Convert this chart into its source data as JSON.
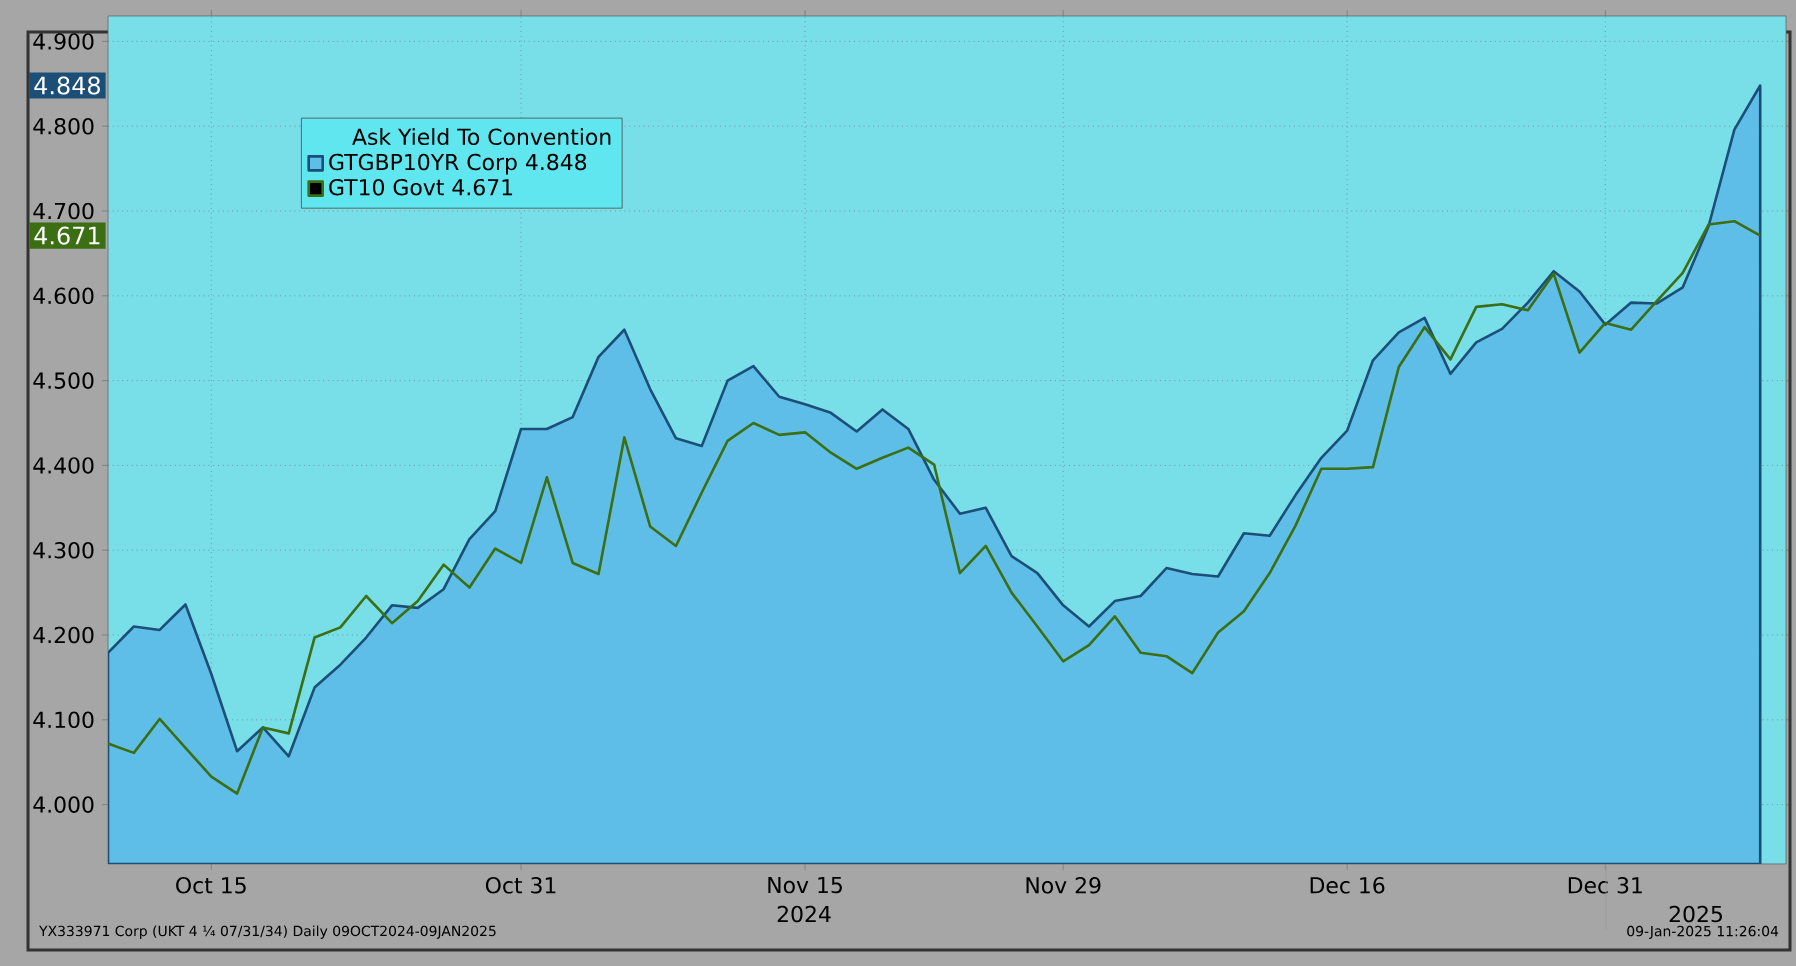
{
  "chart_data": {
    "type": "line",
    "categories": [
      null,
      null,
      null,
      null,
      "Oct 15",
      null,
      null,
      null,
      null,
      null,
      null,
      null,
      null,
      null,
      null,
      null,
      "Oct 31",
      null,
      null,
      null,
      null,
      null,
      null,
      null,
      null,
      null,
      null,
      "Nov 15",
      null,
      null,
      null,
      null,
      null,
      null,
      null,
      null,
      null,
      "Nov 29",
      null,
      null,
      null,
      null,
      null,
      null,
      null,
      null,
      null,
      null,
      "Dec 16",
      null,
      null,
      null,
      null,
      null,
      null,
      null,
      null,
      null,
      "Dec 31",
      null,
      null,
      null,
      null,
      null,
      null
    ],
    "legend_title": "Ask Yield To Convention",
    "series": [
      {
        "name": "GTGBP10YR Corp 4.848",
        "type": "area",
        "color": "#1b4f78",
        "values": [
          4.179,
          4.21,
          4.206,
          4.236,
          4.154,
          4.063,
          4.091,
          4.057,
          4.138,
          4.165,
          4.197,
          4.235,
          4.232,
          4.254,
          4.313,
          4.346,
          4.443,
          4.443,
          4.457,
          4.528,
          4.56,
          4.49,
          4.432,
          4.423,
          4.5,
          4.517,
          4.481,
          4.472,
          4.462,
          4.44,
          4.466,
          4.443,
          4.383,
          4.343,
          4.35,
          4.293,
          4.273,
          4.235,
          4.21,
          4.24,
          4.246,
          4.279,
          4.272,
          4.269,
          4.32,
          4.317,
          4.365,
          4.409,
          4.441,
          4.524,
          4.557,
          4.574,
          4.508,
          4.545,
          4.561,
          4.592,
          4.629,
          4.605,
          4.566,
          4.592,
          4.591,
          4.61,
          4.682,
          4.796,
          4.848
        ]
      },
      {
        "name": "GT10 Govt 4.671",
        "color": "#3c6e14",
        "values": [
          4.072,
          4.061,
          4.101,
          4.067,
          4.033,
          4.013,
          4.091,
          4.084,
          4.197,
          4.209,
          4.246,
          4.214,
          4.24,
          4.283,
          4.256,
          4.302,
          4.285,
          4.386,
          4.285,
          4.272,
          4.433,
          4.328,
          4.305,
          4.368,
          4.429,
          4.45,
          4.436,
          4.439,
          4.415,
          4.396,
          4.409,
          4.421,
          4.401,
          4.273,
          4.305,
          4.25,
          4.21,
          4.169,
          4.188,
          4.222,
          4.179,
          4.175,
          4.155,
          4.203,
          4.228,
          4.273,
          4.329,
          4.396,
          4.396,
          4.398,
          4.516,
          4.563,
          4.525,
          4.587,
          4.59,
          4.583,
          4.626,
          4.533,
          4.568,
          4.56,
          4.594,
          4.627,
          4.684,
          4.688,
          4.671
        ]
      }
    ],
    "ylim": [
      3.93,
      4.93
    ],
    "yticks": [
      {
        "value": 4,
        "label": "4.000"
      },
      {
        "value": 4.1,
        "label": "4.100"
      },
      {
        "value": 4.2,
        "label": "4.200"
      },
      {
        "value": 4.3,
        "label": "4.300"
      },
      {
        "value": 4.4,
        "label": "4.400"
      },
      {
        "value": 4.5,
        "label": "4.500"
      },
      {
        "value": 4.6,
        "label": "4.600"
      },
      {
        "value": 4.7,
        "label": "4.700"
      },
      {
        "value": 4.8,
        "label": "4.800"
      },
      {
        "value": 4.9,
        "label": "4.900"
      }
    ],
    "grid": true,
    "legend": "top left",
    "annotations": [
      "YX333971 Corp (UKT 4 ¼ 07/31/34) Daily 09OCT2024-09JAN2025",
      "09-Jan-2025 11:26:04",
      "2024",
      "2025",
      {
        "text": "4.848",
        "y": 4.848
      },
      {
        "text": "4.671",
        "y": 4.671
      }
    ]
  }
}
